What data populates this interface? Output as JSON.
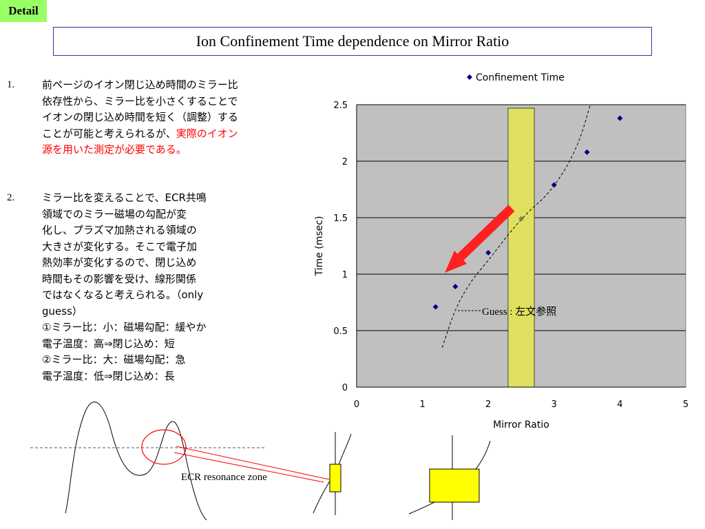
{
  "tag": "Detail",
  "title": "Ion Confinement Time dependence on Mirror Ratio",
  "items": [
    {
      "num": "1.",
      "text_plain": "前ページのイオン閉じ込め時間のミラー比依存性から、ミラー比を小さくすることでイオンの閉じ込め時間を短く（調整）することが可能と考えられるが、",
      "text_red": "実際のイオン源を用いた測定が必要である。"
    },
    {
      "num": "2.",
      "lines": [
        "ミラー比を変えることで、ECR共鳴",
        "領域でのミラー磁場の勾配が変",
        "化し、プラズマ加熱される領域の",
        "大きさが変化する。そこで電子加",
        "熱効率が変化するので、閉じ込め",
        "時間もその影響を受け、線形関係",
        "ではなくなると考えられる。（only",
        "guess）",
        "①ミラー比：小：磁場勾配：緩やか",
        "電子温度：高⇒閉じ込め：短",
        "②ミラー比：大：磁場勾配：急",
        "電子温度：低⇒閉じ込め：長"
      ]
    }
  ],
  "chart_data": {
    "type": "scatter",
    "series": [
      {
        "name": "Confinement Time",
        "color": "#000080",
        "x": [
          1.2,
          1.5,
          2.0,
          2.5,
          3.0,
          3.5,
          4.0
        ],
        "y": [
          0.71,
          0.89,
          1.19,
          1.49,
          1.79,
          2.08,
          2.38
        ]
      }
    ],
    "xlabel": "Mirror Ratio",
    "ylabel": "Time (msec)",
    "xlim": [
      0,
      5
    ],
    "ylim": [
      0,
      2.5
    ],
    "x_ticks": [
      "0",
      "1",
      "2",
      "3",
      "4",
      "5"
    ],
    "y_ticks": [
      "0",
      "0.5",
      "1",
      "1.5",
      "2",
      "2.5"
    ],
    "grid": "horizontal",
    "plot_background": "#c0c0c0",
    "legend_position": "top",
    "highlight_band": {
      "x_from": 2.3,
      "x_to": 2.7,
      "color": "#e0e060"
    },
    "guess_curve": {
      "x": [
        1.3,
        1.5,
        1.75,
        2.0,
        2.3,
        2.6,
        2.9,
        3.2,
        3.4,
        3.55
      ],
      "y": [
        0.35,
        0.7,
        0.95,
        1.12,
        1.35,
        1.55,
        1.7,
        1.95,
        2.2,
        2.5
      ]
    },
    "annotation": "Guess : 左文参照"
  },
  "diagram": {
    "label": "ECR resonance zone"
  }
}
